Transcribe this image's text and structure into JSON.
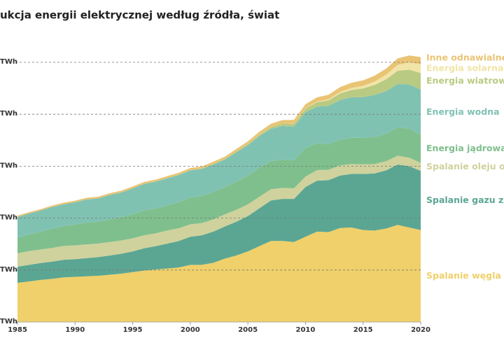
{
  "chart_data": {
    "type": "stacked_area",
    "title": "ukcja energii elektrycznej według źródła, świat",
    "x": [
      1985,
      1986,
      1987,
      1988,
      1989,
      1990,
      1991,
      1992,
      1993,
      1994,
      1995,
      1996,
      1997,
      1998,
      1999,
      2000,
      2001,
      2002,
      2003,
      2004,
      2005,
      2006,
      2007,
      2008,
      2009,
      2010,
      2011,
      2012,
      2013,
      2014,
      2015,
      2016,
      2017,
      2018,
      2019,
      2020
    ],
    "xlim": [
      1985,
      2020
    ],
    "xticks": [
      1985,
      1990,
      1995,
      2000,
      2005,
      2010,
      2015,
      2020
    ],
    "ylim": [
      0,
      25000
    ],
    "yticks": [
      {
        "value": 0,
        "label": "TWh"
      },
      {
        "value": 5000,
        "label": "TWh"
      },
      {
        "value": 10000,
        "label": "TWh"
      },
      {
        "value": 15000,
        "label": "TWh"
      },
      {
        "value": 20000,
        "label": "TWh"
      },
      {
        "value": 25000,
        "label": "TWh"
      }
    ],
    "grid": true,
    "series": [
      {
        "name": "Spalanie węgla",
        "color": "#f0d06a",
        "values": [
          3770,
          3900,
          4050,
          4150,
          4300,
          4350,
          4400,
          4450,
          4550,
          4650,
          4800,
          4950,
          5050,
          5150,
          5250,
          5500,
          5500,
          5700,
          6100,
          6400,
          6800,
          7300,
          7800,
          7800,
          7700,
          8200,
          8700,
          8650,
          9050,
          9100,
          8850,
          8800,
          9000,
          9350,
          9100,
          8850
        ]
      },
      {
        "name": "Spalanie gazu zien",
        "color": "#5ba693",
        "values": [
          1550,
          1600,
          1630,
          1660,
          1690,
          1700,
          1750,
          1800,
          1850,
          1920,
          2000,
          2150,
          2250,
          2400,
          2550,
          2700,
          2850,
          3000,
          3100,
          3250,
          3400,
          3650,
          3900,
          4050,
          4150,
          4800,
          4900,
          5000,
          5050,
          5150,
          5400,
          5500,
          5600,
          5800,
          5900,
          5700
        ]
      },
      {
        "name": "Spalanie oleju opa",
        "color": "#cfd29c",
        "values": [
          1300,
          1320,
          1300,
          1320,
          1330,
          1330,
          1320,
          1300,
          1300,
          1280,
          1250,
          1250,
          1240,
          1250,
          1230,
          1200,
          1180,
          1170,
          1160,
          1150,
          1130,
          1100,
          1080,
          1060,
          1020,
          1000,
          1020,
          1000,
          980,
          950,
          930,
          900,
          880,
          850,
          820,
          770
        ]
      },
      {
        "name": "Energia jądrowa",
        "color": "#7fbf8d",
        "values": [
          1500,
          1600,
          1700,
          1850,
          1900,
          2000,
          2100,
          2100,
          2180,
          2240,
          2320,
          2400,
          2380,
          2420,
          2500,
          2550,
          2620,
          2650,
          2630,
          2700,
          2760,
          2800,
          2720,
          2720,
          2690,
          2760,
          2600,
          2460,
          2480,
          2530,
          2570,
          2610,
          2640,
          2710,
          2800,
          2700
        ]
      },
      {
        "name": "Energia wodna",
        "color": "#80c2b2",
        "values": [
          2000,
          2030,
          2050,
          2100,
          2120,
          2150,
          2230,
          2250,
          2350,
          2380,
          2500,
          2550,
          2600,
          2620,
          2630,
          2650,
          2580,
          2650,
          2650,
          2830,
          2940,
          3050,
          3100,
          3250,
          3250,
          3450,
          3500,
          3700,
          3800,
          3900,
          3900,
          4050,
          4100,
          4200,
          4250,
          4350
        ]
      },
      {
        "name": "Energia wiatrowa",
        "color": "#b9ca82",
        "values": [
          0,
          0,
          0,
          0,
          0,
          4,
          4,
          5,
          6,
          7,
          8,
          12,
          12,
          16,
          21,
          31,
          38,
          52,
          63,
          85,
          104,
          133,
          170,
          220,
          277,
          342,
          436,
          524,
          643,
          711,
          830,
          960,
          1140,
          1270,
          1420,
          1590
        ]
      },
      {
        "name": "Energia solarna",
        "color": "#f1e4a6",
        "values": [
          0,
          0,
          0,
          0,
          0,
          0,
          0,
          0,
          0,
          0,
          0,
          0,
          0,
          0,
          0,
          0,
          0,
          0,
          0,
          3,
          4,
          6,
          8,
          12,
          20,
          32,
          63,
          99,
          136,
          190,
          256,
          329,
          444,
          575,
          703,
          844
        ]
      },
      {
        "name": "Inne odnawialne ź",
        "color": "#e9c474",
        "values": [
          120,
          125,
          130,
          135,
          140,
          145,
          150,
          155,
          160,
          165,
          170,
          175,
          180,
          185,
          190,
          195,
          200,
          210,
          220,
          240,
          260,
          280,
          300,
          330,
          350,
          380,
          410,
          440,
          470,
          500,
          530,
          560,
          590,
          620,
          660,
          700
        ]
      }
    ]
  }
}
